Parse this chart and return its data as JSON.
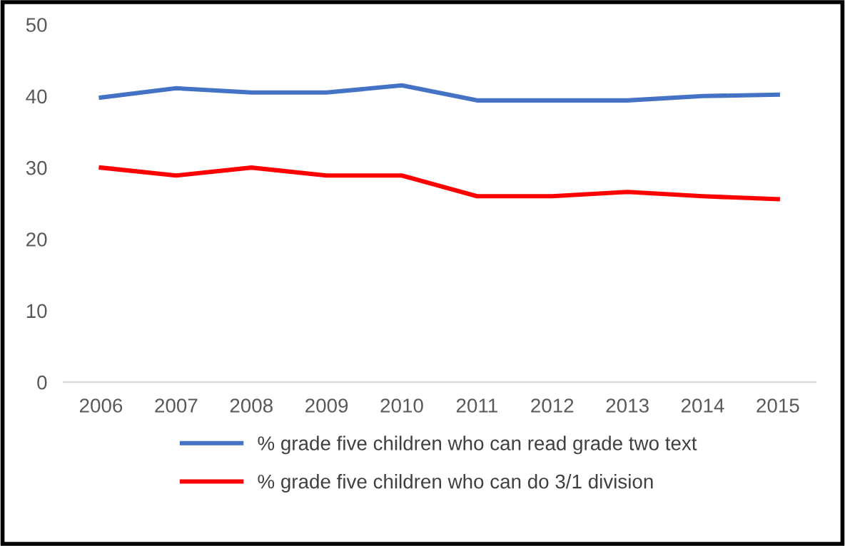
{
  "chart_data": {
    "type": "line",
    "categories": [
      "2006",
      "2007",
      "2008",
      "2009",
      "2010",
      "2011",
      "2012",
      "2013",
      "2014",
      "2015"
    ],
    "series": [
      {
        "name": "% grade five children who can read grade two text",
        "color": "#4472c4",
        "values": [
          39.8,
          41.1,
          40.5,
          40.5,
          41.5,
          39.4,
          39.4,
          39.4,
          40.0,
          40.2
        ]
      },
      {
        "name": "% grade five children who can do 3/1 division",
        "color": "#ff0000",
        "values": [
          30.0,
          28.9,
          30.0,
          28.9,
          28.9,
          26.0,
          26.0,
          26.6,
          26.0,
          25.6
        ]
      }
    ],
    "ylim": [
      0,
      50
    ],
    "yticks": [
      0,
      10,
      20,
      30,
      40,
      50
    ],
    "grid": false,
    "legend": "bottom",
    "marker": "none",
    "line_style": "solid"
  }
}
